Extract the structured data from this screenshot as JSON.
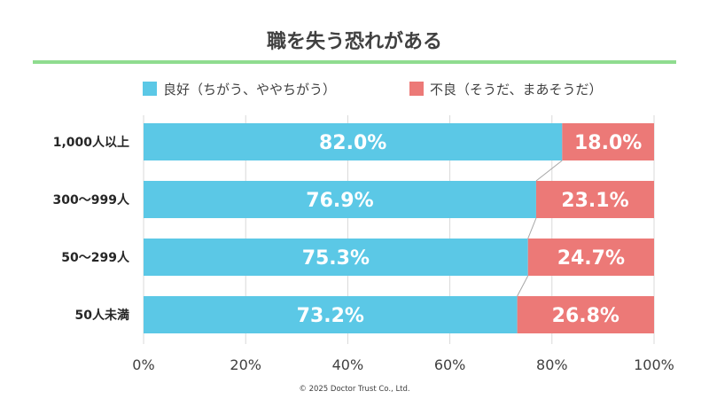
{
  "colors": {
    "good": "#5bc8e6",
    "bad": "#ec7977",
    "title_rule": "#8fdc8f",
    "grid": "#d9d9d9",
    "connector": "#a6a6a6"
  },
  "copyright": "© 2025 Doctor Trust Co., Ltd.",
  "chart_data": {
    "type": "bar",
    "orientation": "horizontal",
    "stacked": true,
    "title": "職を失う恐れがある",
    "categories": [
      "1,000人以上",
      "300〜999人",
      "50〜299人",
      "50人未満"
    ],
    "series": [
      {
        "name": "良好（ちがう、ややちがう）",
        "color": "#5bc8e6",
        "values": [
          82.0,
          76.9,
          75.3,
          73.2
        ],
        "labels": [
          "82.0%",
          "76.9%",
          "75.3%",
          "73.2%"
        ]
      },
      {
        "name": "不良（そうだ、まあそうだ）",
        "color": "#ec7977",
        "values": [
          18.0,
          23.1,
          24.7,
          26.8
        ],
        "labels": [
          "18.0%",
          "23.1%",
          "24.7%",
          "26.8%"
        ]
      }
    ],
    "xlim": [
      0,
      100
    ],
    "xticks": [
      "0%",
      "20%",
      "40%",
      "60%",
      "80%",
      "100%"
    ],
    "grid": true,
    "legend_position": "top"
  }
}
